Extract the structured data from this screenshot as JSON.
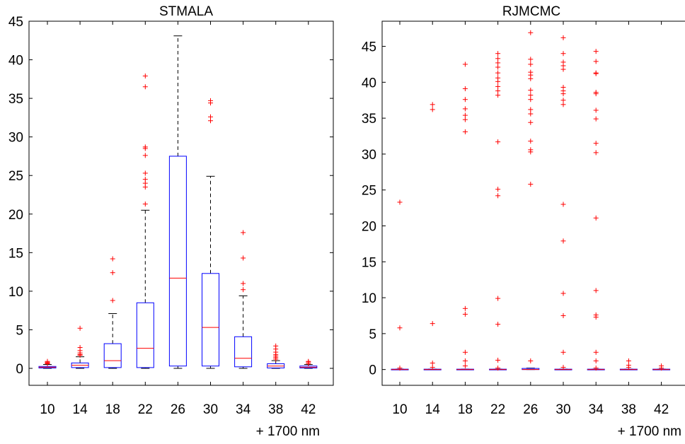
{
  "chart_data": [
    {
      "type": "box",
      "title": "STMALA",
      "categories": [
        "10",
        "14",
        "18",
        "22",
        "26",
        "30",
        "34",
        "38",
        "42"
      ],
      "xnote": "+ 1700 nm",
      "ylim": [
        -2.2,
        45
      ],
      "yticks": [
        0,
        5,
        10,
        15,
        20,
        25,
        30,
        35,
        40,
        45
      ],
      "box_color": "#0000ff",
      "median_color": "#ff0000",
      "outlier_color": "#ff0000",
      "boxes": [
        {
          "category": "10",
          "q1": 0.05,
          "median": 0.15,
          "q3": 0.25,
          "whisker_low": 0,
          "whisker_high": 0.5,
          "outliers": [
            0.6,
            0.7,
            0.8,
            0.9
          ]
        },
        {
          "category": "14",
          "q1": 0.1,
          "median": 0.4,
          "q3": 0.7,
          "whisker_low": 0,
          "whisker_high": 1.5,
          "outliers": [
            1.7,
            1.8,
            2.0,
            2.3,
            2.7,
            5.2
          ]
        },
        {
          "category": "18",
          "q1": 0.1,
          "median": 1.0,
          "q3": 3.2,
          "whisker_low": 0,
          "whisker_high": 7.1,
          "outliers": [
            8.8,
            12.4,
            14.2
          ]
        },
        {
          "category": "22",
          "q1": 0.1,
          "median": 2.6,
          "q3": 8.5,
          "whisker_low": 0,
          "whisker_high": 20.5,
          "outliers": [
            21.3,
            23.5,
            24.0,
            24.5,
            25.3,
            27.6,
            28.5,
            28.7,
            36.5,
            37.9
          ]
        },
        {
          "category": "26",
          "q1": 0.3,
          "median": 11.7,
          "q3": 27.5,
          "whisker_low": 0,
          "whisker_high": 43.1,
          "outliers": []
        },
        {
          "category": "30",
          "q1": 0.3,
          "median": 5.3,
          "q3": 12.3,
          "whisker_low": 0,
          "whisker_high": 24.9,
          "outliers": [
            32.1,
            32.6,
            34.4,
            34.7
          ]
        },
        {
          "category": "34",
          "q1": 0.2,
          "median": 1.3,
          "q3": 4.1,
          "whisker_low": 0,
          "whisker_high": 9.4,
          "outliers": [
            10.2,
            11.0,
            14.3,
            17.6
          ]
        },
        {
          "category": "38",
          "q1": 0.05,
          "median": 0.3,
          "q3": 0.6,
          "whisker_low": 0,
          "whisker_high": 1.0,
          "outliers": [
            1.2,
            1.4,
            1.6,
            1.8,
            2.1,
            2.5,
            2.9
          ]
        },
        {
          "category": "42",
          "q1": 0.05,
          "median": 0.15,
          "q3": 0.3,
          "whisker_low": 0,
          "whisker_high": 0.5,
          "outliers": [
            0.6,
            0.8,
            0.9
          ]
        }
      ]
    },
    {
      "type": "box",
      "title": "RJMCMC",
      "categories": [
        "10",
        "14",
        "18",
        "22",
        "26",
        "30",
        "34",
        "38",
        "42"
      ],
      "xnote": "+ 1700 nm",
      "ylim": [
        -2.2,
        48.5
      ],
      "yticks": [
        0,
        5,
        10,
        15,
        20,
        25,
        30,
        35,
        40,
        45
      ],
      "box_color": "#0000ff",
      "median_color": "#ff0000",
      "outlier_color": "#ff0000",
      "boxes": [
        {
          "category": "10",
          "q1": 0,
          "median": 0,
          "q3": 0.05,
          "whisker_low": 0,
          "whisker_high": 0.05,
          "outliers": [
            0.2,
            5.8,
            23.3
          ]
        },
        {
          "category": "14",
          "q1": 0,
          "median": 0,
          "q3": 0.05,
          "whisker_low": 0,
          "whisker_high": 0.05,
          "outliers": [
            0.3,
            0.9,
            6.4,
            36.2,
            36.9
          ]
        },
        {
          "category": "18",
          "q1": 0,
          "median": 0,
          "q3": 0.05,
          "whisker_low": 0,
          "whisker_high": 0.05,
          "outliers": [
            0.5,
            1.2,
            2.4,
            7.7,
            8.5,
            33.1,
            34.8,
            35.4,
            36.3,
            37.6,
            39.1,
            42.5
          ]
        },
        {
          "category": "22",
          "q1": 0,
          "median": 0,
          "q3": 0.05,
          "whisker_low": 0,
          "whisker_high": 0.05,
          "outliers": [
            0.2,
            1.3,
            6.3,
            9.9,
            24.2,
            25.1,
            31.7,
            38.2,
            38.8,
            39.4,
            40.1,
            40.6,
            41.3,
            42.1,
            42.7,
            43.3,
            44.0
          ]
        },
        {
          "category": "26",
          "q1": 0,
          "median": 0,
          "q3": 0.15,
          "whisker_low": 0,
          "whisker_high": 0.2,
          "outliers": [
            1.2,
            25.8,
            30.3,
            30.6,
            31.8,
            34.4,
            35.6,
            36.2,
            37.6,
            38.2,
            38.9,
            40.5,
            41.0,
            41.4,
            42.5,
            43.2,
            46.9
          ]
        },
        {
          "category": "30",
          "q1": 0,
          "median": 0,
          "q3": 0.05,
          "whisker_low": 0,
          "whisker_high": 0.05,
          "outliers": [
            0.3,
            2.4,
            7.5,
            10.6,
            17.9,
            23.0,
            36.9,
            37.5,
            38.4,
            38.8,
            39.3,
            41.8,
            42.3,
            42.8,
            44.0,
            46.2
          ]
        },
        {
          "category": "34",
          "q1": 0,
          "median": 0,
          "q3": 0.05,
          "whisker_low": 0,
          "whisker_high": 0.05,
          "outliers": [
            0.2,
            1.2,
            2.4,
            7.3,
            7.6,
            11.0,
            21.1,
            30.2,
            31.5,
            34.9,
            36.1,
            38.4,
            38.6,
            41.2,
            41.3,
            42.9,
            44.3
          ]
        },
        {
          "category": "38",
          "q1": 0,
          "median": 0,
          "q3": 0.05,
          "whisker_low": 0,
          "whisker_high": 0.05,
          "outliers": [
            0.3,
            0.6,
            1.2
          ]
        },
        {
          "category": "42",
          "q1": 0,
          "median": 0,
          "q3": 0.05,
          "whisker_low": 0,
          "whisker_high": 0.05,
          "outliers": [
            0.2,
            0.5
          ]
        }
      ]
    }
  ]
}
